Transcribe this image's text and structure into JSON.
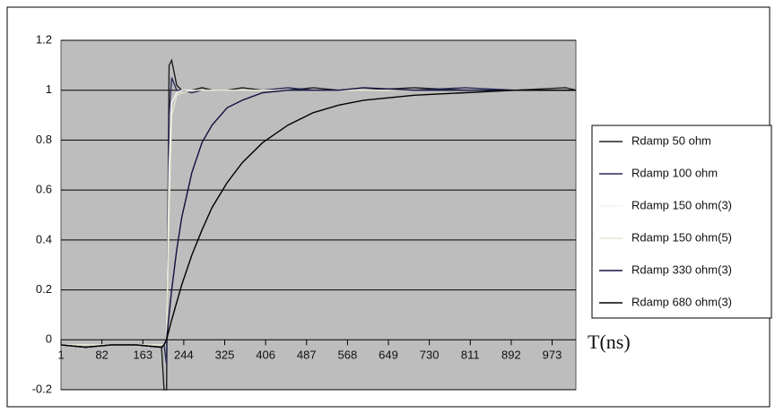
{
  "chart_data": {
    "type": "line",
    "xlabel": "T(ns)",
    "x": [
      1,
      50,
      100,
      150,
      200,
      205,
      210,
      215,
      220,
      230,
      240,
      260,
      280,
      300,
      330,
      360,
      400,
      450,
      500,
      550,
      600,
      700,
      800,
      900,
      1000,
      1020
    ],
    "series": [
      {
        "name": "Rdamp 50 ohm",
        "color": "#1e1e1e",
        "values": [
          -0.02,
          -0.03,
          -0.02,
          -0.02,
          -0.03,
          -0.2,
          -0.2,
          1.1,
          1.12,
          1.02,
          1.0,
          1.0,
          1.01,
          1.0,
          1.0,
          1.01,
          1.0,
          1.0,
          1.01,
          1.0,
          1.0,
          1.01,
          1.0,
          1.0,
          1.01,
          1.0
        ]
      },
      {
        "name": "Rdamp 100 ohm",
        "color": "#2a2a55",
        "values": [
          -0.02,
          -0.03,
          -0.02,
          -0.02,
          -0.03,
          -0.02,
          -0.1,
          0.9,
          1.05,
          1.0,
          1.0,
          0.99,
          1.0,
          1.0,
          1.0,
          1.0,
          1.0,
          1.01,
          1.0,
          1.0,
          1.0,
          1.0,
          1.01,
          1.0,
          1.0,
          1.0
        ]
      },
      {
        "name": "Rdamp 150 ohm(3)",
        "color": "#f4f4f4",
        "values": [
          -0.02,
          -0.02,
          -0.02,
          -0.02,
          -0.02,
          -0.02,
          0.0,
          0.7,
          0.95,
          0.99,
          1.0,
          1.0,
          1.0,
          1.0,
          1.0,
          1.0,
          1.0,
          1.0,
          1.0,
          1.0,
          1.0,
          1.0,
          1.0,
          1.0,
          1.0,
          1.0
        ]
      },
      {
        "name": "Rdamp 150 ohm(5)",
        "color": "#e6e6d2",
        "values": [
          -0.02,
          -0.02,
          -0.02,
          -0.02,
          -0.02,
          -0.02,
          0.0,
          0.5,
          0.9,
          0.98,
          0.99,
          1.0,
          1.0,
          1.0,
          1.0,
          1.0,
          1.0,
          1.0,
          1.0,
          1.0,
          1.0,
          1.0,
          1.0,
          1.0,
          1.0,
          1.0
        ]
      },
      {
        "name": "Rdamp 330 ohm(3)",
        "color": "#101040",
        "values": [
          -0.02,
          -0.03,
          -0.02,
          -0.02,
          -0.03,
          -0.02,
          0.0,
          0.1,
          0.2,
          0.36,
          0.49,
          0.67,
          0.79,
          0.86,
          0.93,
          0.96,
          0.99,
          1.0,
          1.0,
          1.0,
          1.01,
          1.0,
          1.0,
          1.0,
          1.0,
          1.0
        ]
      },
      {
        "name": "Rdamp 680 ohm(3)",
        "color": "#000000",
        "values": [
          -0.02,
          -0.03,
          -0.02,
          -0.02,
          -0.03,
          -0.02,
          0.0,
          0.04,
          0.08,
          0.15,
          0.22,
          0.34,
          0.44,
          0.53,
          0.63,
          0.71,
          0.79,
          0.86,
          0.91,
          0.94,
          0.96,
          0.98,
          0.99,
          1.0,
          1.0,
          1.0
        ]
      }
    ],
    "xlim": [
      1,
      1020
    ],
    "xticks": [
      1,
      82,
      163,
      244,
      325,
      406,
      487,
      568,
      649,
      730,
      811,
      892,
      973
    ],
    "ylim": [
      -0.2,
      1.2
    ],
    "yticks": [
      -0.2,
      0,
      0.2,
      0.4,
      0.6,
      0.8,
      1,
      1.2
    ],
    "grid": true,
    "legend": "right"
  }
}
